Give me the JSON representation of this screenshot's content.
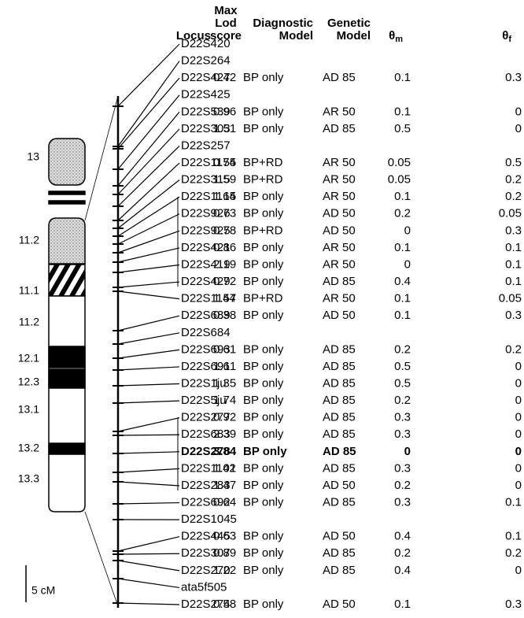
{
  "ideogram": {
    "band_labels": [
      "13",
      "11.2",
      "11.1",
      "11.2",
      "12.1",
      "12.3",
      "13.1",
      "13.2",
      "13.3"
    ],
    "scale_label": "5 cM"
  },
  "table": {
    "headers": {
      "locus": [
        "Locus"
      ],
      "lod": [
        "Max",
        "Lod",
        "score"
      ],
      "diagnostic": [
        "Diagnostic",
        "Model"
      ],
      "genetic": [
        "Genetic",
        "Model"
      ],
      "theta_m": {
        "symbol": "θ",
        "sub": "m"
      },
      "theta_f": {
        "symbol": "θ",
        "sub": "f"
      }
    },
    "rows": [
      {
        "locus": "D22S420"
      },
      {
        "locus": "D22S264"
      },
      {
        "locus": "D22S427",
        "lod": 0.42,
        "diagnostic": "BP only",
        "genetic": "AD 85",
        "theta_m": 0.1,
        "theta_f": 0.3
      },
      {
        "locus": "D22S425"
      },
      {
        "locus": "D22S539",
        "lod": 0.96,
        "diagnostic": "BP only",
        "genetic": "AR 50",
        "theta_m": 0.1,
        "theta_f": 0
      },
      {
        "locus": "D22S303",
        "lod": 1.51,
        "diagnostic": "BP only",
        "genetic": "AD 85",
        "theta_m": 0.5,
        "theta_f": 0
      },
      {
        "locus": "D22S257"
      },
      {
        "locus": "D22S1174",
        "lod": 0.55,
        "diagnostic": "BP+RD",
        "genetic": "AR 50",
        "theta_m": 0.05,
        "theta_f": 0.5
      },
      {
        "locus": "D22S315",
        "lod": 1.59,
        "diagnostic": "BP+RD",
        "genetic": "AR 50",
        "theta_m": 0.05,
        "theta_f": 0.2
      },
      {
        "locus": "D22S1164",
        "lod": 1.15,
        "diagnostic": "BP only",
        "genetic": "AR 50",
        "theta_m": 0.1,
        "theta_f": 0.2
      },
      {
        "locus": "D22S926",
        "lod": 0.73,
        "diagnostic": "BP only",
        "genetic": "AD 50",
        "theta_m": 0.2,
        "theta_f": 0.05
      },
      {
        "locus": "D22S925",
        "lod": 0.78,
        "diagnostic": "BP+RD",
        "genetic": "AD 50",
        "theta_m": 0,
        "theta_f": 0.3
      },
      {
        "locus": "D22S421",
        "lod": 0.86,
        "diagnostic": "BP only",
        "genetic": "AR 50",
        "theta_m": 0.1,
        "theta_f": 0.1
      },
      {
        "locus": "D22S419",
        "lod": 2.19,
        "diagnostic": "BP only",
        "genetic": "AR 50",
        "theta_m": 0,
        "theta_f": 0.1
      },
      {
        "locus": "D22S429",
        "lod": 0.72,
        "diagnostic": "BP only",
        "genetic": "AD 85",
        "theta_m": 0.4,
        "theta_f": 0.1
      },
      {
        "locus": "D22S1144",
        "lod": 1.57,
        "diagnostic": "BP+RD",
        "genetic": "AR 50",
        "theta_m": 0.1,
        "theta_f": 0.05
      },
      {
        "locus": "D22S689",
        "lod": 0.38,
        "diagnostic": "BP only",
        "genetic": "AD 50",
        "theta_m": 0.1,
        "theta_f": 0.3
      },
      {
        "locus": "D22S684"
      },
      {
        "locus": "D22S693",
        "lod": 0.61,
        "diagnostic": "BP only",
        "genetic": "AD 85",
        "theta_m": 0.2,
        "theta_f": 0.2
      },
      {
        "locus": "D22S691",
        "lod": 1.61,
        "diagnostic": "BP only",
        "genetic": "AD 85",
        "theta_m": 0.5,
        "theta_f": 0
      },
      {
        "locus": "D22S1ju",
        "lod": 1.35,
        "diagnostic": "BP only",
        "genetic": "AD 85",
        "theta_m": 0.5,
        "theta_f": 0
      },
      {
        "locus": "D22S5ju",
        "lod": 1.74,
        "diagnostic": "BP only",
        "genetic": "AD 85",
        "theta_m": 0.2,
        "theta_f": 0
      },
      {
        "locus": "D22S277",
        "lod": 0.92,
        "diagnostic": "BP only",
        "genetic": "AD 85",
        "theta_m": 0.3,
        "theta_f": 0
      },
      {
        "locus": "D22S683",
        "lod": 2.39,
        "diagnostic": "BP only",
        "genetic": "AD 85",
        "theta_m": 0.3,
        "theta_f": 0
      },
      {
        "locus": "D22S278",
        "lod": 3.84,
        "diagnostic": "BP only",
        "genetic": "AD 85",
        "theta_m": 0,
        "theta_f": 0,
        "bold": true
      },
      {
        "locus": "D22S1142",
        "lod": 1.01,
        "diagnostic": "BP only",
        "genetic": "AD 85",
        "theta_m": 0.3,
        "theta_f": 0
      },
      {
        "locus": "D22S283",
        "lod": 1.47,
        "diagnostic": "BP only",
        "genetic": "AD 50",
        "theta_m": 0.2,
        "theta_f": 0
      },
      {
        "locus": "D22S692",
        "lod": 0.64,
        "diagnostic": "BP only",
        "genetic": "AD 85",
        "theta_m": 0.3,
        "theta_f": 0.1
      },
      {
        "locus": "D22S1045"
      },
      {
        "locus": "D22S445",
        "lod": 0.63,
        "diagnostic": "BP only",
        "genetic": "AD 50",
        "theta_m": 0.4,
        "theta_f": 0.1
      },
      {
        "locus": "D22S307",
        "lod": 0.89,
        "diagnostic": "BP only",
        "genetic": "AD 85",
        "theta_m": 0.2,
        "theta_f": 0.2
      },
      {
        "locus": "D22S270",
        "lod": 1.22,
        "diagnostic": "BP only",
        "genetic": "AD 85",
        "theta_m": 0.4,
        "theta_f": 0
      },
      {
        "locus": "ata5f505"
      },
      {
        "locus": "D22S274",
        "lod": 0.58,
        "diagnostic": "BP only",
        "genetic": "AD 50",
        "theta_m": 0.1,
        "theta_f": 0.3
      }
    ]
  }
}
